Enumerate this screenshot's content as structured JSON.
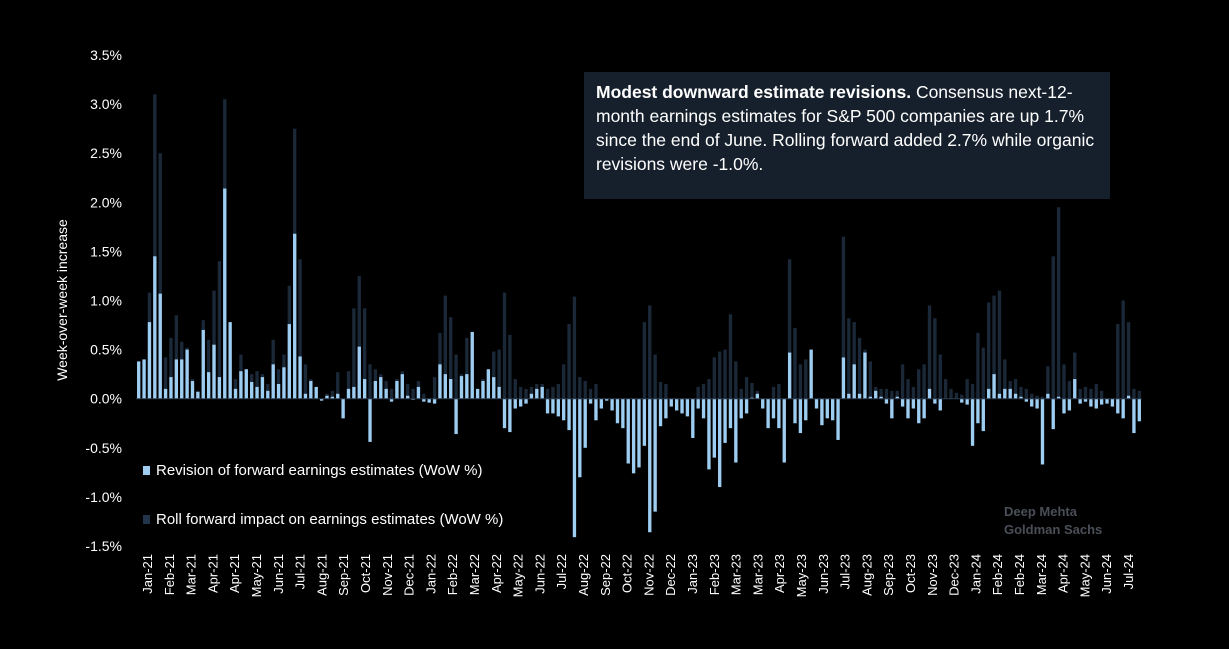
{
  "colors": {
    "background": "#000000",
    "revision": "#9ecdf2",
    "roll_forward": "#1a2838",
    "annotation_bg": "#16202c"
  },
  "annotation": {
    "bold": "Modest downward estimate revisions.",
    "text": " Consensus next-12-month earnings estimates for S&P 500 companies are up 1.7% since the end of June.  Rolling forward added 2.7% while organic revisions were -1.0%."
  },
  "legend": {
    "revision": "Revision of forward earnings estimates (WoW %)",
    "roll_forward": "Roll forward impact on earnings estimates (WoW %)"
  },
  "watermark": {
    "line1": "Deep Mehta",
    "line2": "Goldman Sachs"
  },
  "chart_data": {
    "type": "bar",
    "title": "",
    "ylabel": "Week-over-week increase",
    "ylim": [
      -1.5,
      3.5
    ],
    "yticks": [
      "3.5%",
      "3.0%",
      "2.5%",
      "2.0%",
      "1.5%",
      "1.0%",
      "0.5%",
      "0.0%",
      "-0.5%",
      "-1.0%",
      "-1.5%"
    ],
    "ytick_values": [
      3.5,
      3.0,
      2.5,
      2.0,
      1.5,
      1.0,
      0.5,
      0.0,
      -0.5,
      -1.0,
      -1.5
    ],
    "xticks": [
      "Jan-21",
      "Feb-21",
      "Mar-21",
      "Apr-21",
      "Apr-21",
      "May-21",
      "Jun-21",
      "Jul-21",
      "Aug-21",
      "Sep-21",
      "Oct-21",
      "Nov-21",
      "Dec-21",
      "Jan-22",
      "Feb-22",
      "Mar-22",
      "Apr-22",
      "May-22",
      "Jun-22",
      "Jul-22",
      "Aug-22",
      "Sep-22",
      "Oct-22",
      "Nov-22",
      "Dec-22",
      "Jan-23",
      "Feb-23",
      "Mar-23",
      "Mar-23",
      "Apr-23",
      "May-23",
      "Jun-23",
      "Jul-23",
      "Aug-23",
      "Sep-23",
      "Oct-23",
      "Nov-23",
      "Dec-23",
      "Jan-24",
      "Feb-24",
      "Feb-24",
      "Mar-24",
      "Apr-24",
      "May-24",
      "Jun-24",
      "Jul-24"
    ],
    "grid": false,
    "series": [
      {
        "name": "Revision of forward earnings estimates (WoW %)",
        "values": [
          0.38,
          0.4,
          0.78,
          1.45,
          1.07,
          0.1,
          0.22,
          0.4,
          0.4,
          0.5,
          0.18,
          0.07,
          0.7,
          0.27,
          0.55,
          0.22,
          2.14,
          0.78,
          0.1,
          0.28,
          0.3,
          0.17,
          0.12,
          0.22,
          0.08,
          0.35,
          0.15,
          0.32,
          0.76,
          1.68,
          0.43,
          0.05,
          0.18,
          0.12,
          -0.02,
          0.03,
          0.02,
          0.05,
          -0.2,
          0.1,
          0.12,
          0.53,
          0.2,
          -0.44,
          0.18,
          0.22,
          0.1,
          -0.03,
          0.18,
          0.25,
          0.03,
          -0.01,
          0.12,
          -0.03,
          -0.04,
          -0.05,
          0.35,
          0.25,
          0.2,
          -0.36,
          0.23,
          0.25,
          0.68,
          0.1,
          0.18,
          0.3,
          0.22,
          0.12,
          -0.3,
          -0.34,
          -0.1,
          -0.08,
          -0.05,
          0.05,
          0.1,
          0.12,
          -0.15,
          -0.15,
          -0.18,
          -0.22,
          -0.32,
          -1.41,
          -0.8,
          -0.5,
          -0.05,
          -0.22,
          -0.1,
          -0.02,
          -0.12,
          -0.25,
          -0.3,
          -0.66,
          -0.76,
          -0.7,
          -0.48,
          -1.36,
          -1.15,
          -0.28,
          -0.2,
          -0.08,
          -0.12,
          -0.15,
          -0.18,
          -0.4,
          -0.1,
          -0.2,
          -0.72,
          -0.6,
          -0.9,
          -0.45,
          -0.3,
          -0.65,
          -0.2,
          -0.15,
          0.01,
          0.05,
          -0.1,
          -0.3,
          -0.2,
          -0.3,
          -0.65,
          0.47,
          -0.25,
          -0.35,
          -0.22,
          0.5,
          -0.1,
          -0.27,
          -0.2,
          -0.22,
          -0.42,
          0.42,
          0.05,
          0.35,
          0.05,
          0.47,
          0.02,
          0.08,
          0.02,
          -0.05,
          -0.2,
          0.02,
          -0.08,
          -0.2,
          -0.1,
          -0.25,
          -0.2,
          0.1,
          -0.05,
          -0.12,
          0.0,
          0.0,
          0.0,
          -0.04,
          -0.06,
          -0.48,
          -0.25,
          -0.33,
          0.1,
          0.25,
          0.05,
          0.1,
          0.1,
          0.05,
          0.02,
          -0.03,
          -0.08,
          -0.1,
          -0.67,
          0.05,
          -0.31,
          0.02,
          -0.15,
          -0.12,
          0.2,
          -0.05,
          -0.03,
          -0.08,
          -0.1,
          -0.06,
          -0.05,
          -0.08,
          -0.15,
          -0.2,
          0.03,
          -0.35,
          -0.23
        ]
      },
      {
        "name": "Roll forward impact on earnings estimates (WoW %)",
        "values": [
          0.0,
          0.0,
          1.08,
          3.1,
          2.5,
          0.42,
          0.62,
          0.85,
          0.58,
          0.52,
          0.2,
          0.08,
          0.8,
          0.6,
          1.1,
          1.4,
          3.05,
          0.38,
          0.2,
          0.45,
          0.3,
          0.25,
          0.28,
          0.25,
          0.15,
          0.6,
          0.3,
          0.45,
          1.15,
          2.75,
          1.42,
          0.35,
          0.2,
          0.05,
          0.0,
          0.05,
          0.08,
          0.27,
          0.0,
          0.28,
          0.92,
          1.25,
          0.92,
          0.35,
          0.3,
          0.25,
          0.18,
          0.1,
          0.2,
          0.28,
          0.15,
          0.1,
          0.18,
          0.05,
          0.0,
          0.22,
          0.67,
          1.05,
          0.83,
          0.45,
          0.25,
          0.62,
          0.35,
          0.1,
          0.2,
          0.28,
          0.48,
          0.5,
          1.08,
          0.65,
          0.2,
          0.12,
          0.1,
          0.12,
          0.15,
          0.15,
          0.1,
          0.12,
          0.15,
          0.35,
          0.76,
          1.04,
          0.22,
          0.18,
          0.1,
          0.15,
          0.0,
          0.0,
          0.0,
          0.0,
          0.0,
          0.0,
          0.0,
          0.0,
          0.78,
          0.95,
          0.45,
          0.17,
          0.15,
          0.0,
          0.0,
          0.0,
          0.0,
          0.0,
          0.12,
          0.15,
          0.2,
          0.42,
          0.48,
          0.5,
          0.86,
          0.38,
          0.1,
          0.22,
          0.16,
          0.08,
          0.0,
          0.0,
          0.12,
          0.15,
          0.0,
          1.42,
          0.72,
          0.35,
          0.4,
          0.0,
          0.0,
          0.0,
          0.0,
          0.0,
          0.0,
          1.65,
          0.82,
          0.78,
          0.62,
          0.5,
          0.38,
          0.12,
          0.1,
          0.1,
          0.08,
          0.08,
          0.35,
          0.2,
          0.12,
          0.3,
          0.35,
          0.95,
          0.82,
          0.45,
          0.2,
          0.1,
          0.06,
          0.04,
          0.2,
          0.15,
          0.67,
          0.52,
          0.98,
          1.05,
          1.1,
          0.4,
          0.18,
          0.2,
          0.12,
          0.1,
          0.05,
          0.03,
          0.02,
          0.33,
          1.45,
          1.95,
          0.35,
          0.18,
          0.47,
          0.1,
          0.12,
          0.1,
          0.15,
          0.08,
          0.0,
          0.0,
          0.76,
          1.0,
          0.78,
          0.1,
          0.08
        ]
      }
    ]
  }
}
